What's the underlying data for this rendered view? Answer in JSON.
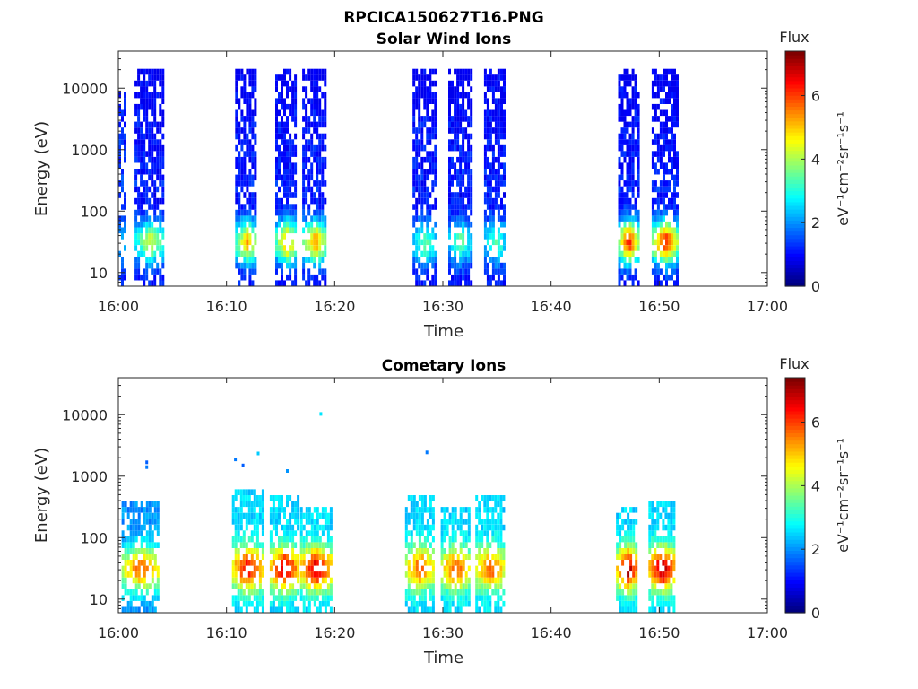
{
  "figure": {
    "title_line1": "RPCICA150627T16.PNG"
  },
  "colors": {
    "colormap": "jet",
    "background": "#ffffff",
    "axis": "#262626"
  },
  "chart_data": [
    {
      "type": "heatmap",
      "title": "Solar Wind Ions",
      "xlabel": "Time",
      "ylabel": "Energy (eV)",
      "x_ticks": [
        "16:00",
        "16:10",
        "16:20",
        "16:30",
        "16:40",
        "16:50",
        "17:00"
      ],
      "x_range_min": [
        0,
        60
      ],
      "y_scale": "log",
      "y_ticks": [
        "10",
        "100",
        "1000",
        "10000"
      ],
      "y_range_eV": [
        6,
        40000
      ],
      "colorbar": {
        "label_top": "Flux",
        "unit": "eV⁻¹cm⁻²sr⁻¹s⁻¹",
        "ticks": [
          "0",
          "2",
          "4",
          "6"
        ],
        "range": [
          0,
          7.4
        ]
      },
      "bursts": [
        {
          "t": 0.0,
          "dur": 0.7,
          "peak": 2.4,
          "low": 1.2,
          "max_eV": 8000,
          "density": 0.5
        },
        {
          "t": 1.5,
          "dur": 2.7,
          "peak": 4.3,
          "low": 1.0,
          "max_eV": 20000,
          "density": 0.75
        },
        {
          "t": 10.8,
          "dur": 2.0,
          "peak": 5.2,
          "low": 1.0,
          "max_eV": 20000,
          "density": 0.75
        },
        {
          "t": 14.5,
          "dur": 2.0,
          "peak": 5.3,
          "low": 1.0,
          "max_eV": 20000,
          "density": 0.75
        },
        {
          "t": 17.0,
          "dur": 2.2,
          "peak": 5.4,
          "low": 1.0,
          "max_eV": 20000,
          "density": 0.75
        },
        {
          "t": 27.2,
          "dur": 2.1,
          "peak": 3.6,
          "low": 1.0,
          "max_eV": 20000,
          "density": 0.75
        },
        {
          "t": 30.5,
          "dur": 2.1,
          "peak": 3.5,
          "low": 1.0,
          "max_eV": 20000,
          "density": 0.75
        },
        {
          "t": 33.8,
          "dur": 2.0,
          "peak": 3.5,
          "low": 1.0,
          "max_eV": 20000,
          "density": 0.75
        },
        {
          "t": 46.2,
          "dur": 1.8,
          "peak": 6.3,
          "low": 1.0,
          "max_eV": 20000,
          "density": 0.75
        },
        {
          "t": 49.3,
          "dur": 2.3,
          "peak": 6.4,
          "low": 1.0,
          "max_eV": 20000,
          "density": 0.75
        }
      ]
    },
    {
      "type": "heatmap",
      "title": "Cometary Ions",
      "xlabel": "Time",
      "ylabel": "Energy (eV)",
      "x_ticks": [
        "16:00",
        "16:10",
        "16:20",
        "16:30",
        "16:40",
        "16:50",
        "17:00"
      ],
      "x_range_min": [
        0,
        60
      ],
      "y_scale": "log",
      "y_ticks": [
        "10",
        "100",
        "1000",
        "10000"
      ],
      "y_range_eV": [
        6,
        40000
      ],
      "colorbar": {
        "label_top": "Flux",
        "unit": "eV⁻¹cm⁻²sr⁻¹s⁻¹",
        "ticks": [
          "0",
          "2",
          "4",
          "6"
        ],
        "range": [
          0,
          7.4
        ]
      },
      "bursts": [
        {
          "t": 0.3,
          "dur": 3.5,
          "peak": 6.0,
          "low": 2.0,
          "max_eV": 350,
          "density": 0.7
        },
        {
          "t": 10.5,
          "dur": 2.8,
          "peak": 6.8,
          "low": 2.5,
          "max_eV": 500,
          "density": 0.75
        },
        {
          "t": 14.0,
          "dur": 2.6,
          "peak": 7.0,
          "low": 2.5,
          "max_eV": 450,
          "density": 0.75
        },
        {
          "t": 16.8,
          "dur": 2.8,
          "peak": 7.0,
          "low": 2.5,
          "max_eV": 300,
          "density": 0.75
        },
        {
          "t": 26.5,
          "dur": 2.6,
          "peak": 6.0,
          "low": 2.5,
          "max_eV": 450,
          "density": 0.75
        },
        {
          "t": 29.8,
          "dur": 2.6,
          "peak": 6.0,
          "low": 2.5,
          "max_eV": 300,
          "density": 0.75
        },
        {
          "t": 33.0,
          "dur": 2.6,
          "peak": 6.0,
          "low": 2.5,
          "max_eV": 400,
          "density": 0.75
        },
        {
          "t": 46.0,
          "dur": 2.0,
          "peak": 7.2,
          "low": 2.5,
          "max_eV": 300,
          "density": 0.75
        },
        {
          "t": 49.0,
          "dur": 2.4,
          "peak": 7.3,
          "low": 2.5,
          "max_eV": 350,
          "density": 0.75
        }
      ],
      "sparse_points": [
        {
          "t": 2.5,
          "eV": 1800,
          "v": 1.6
        },
        {
          "t": 2.5,
          "eV": 1500,
          "v": 1.8
        },
        {
          "t": 10.7,
          "eV": 2000,
          "v": 1.8
        },
        {
          "t": 11.4,
          "eV": 1600,
          "v": 1.6
        },
        {
          "t": 12.8,
          "eV": 2500,
          "v": 2.4
        },
        {
          "t": 15.5,
          "eV": 1300,
          "v": 2.0
        },
        {
          "t": 18.6,
          "eV": 11000,
          "v": 2.6
        },
        {
          "t": 28.4,
          "eV": 2600,
          "v": 1.8
        }
      ]
    }
  ]
}
